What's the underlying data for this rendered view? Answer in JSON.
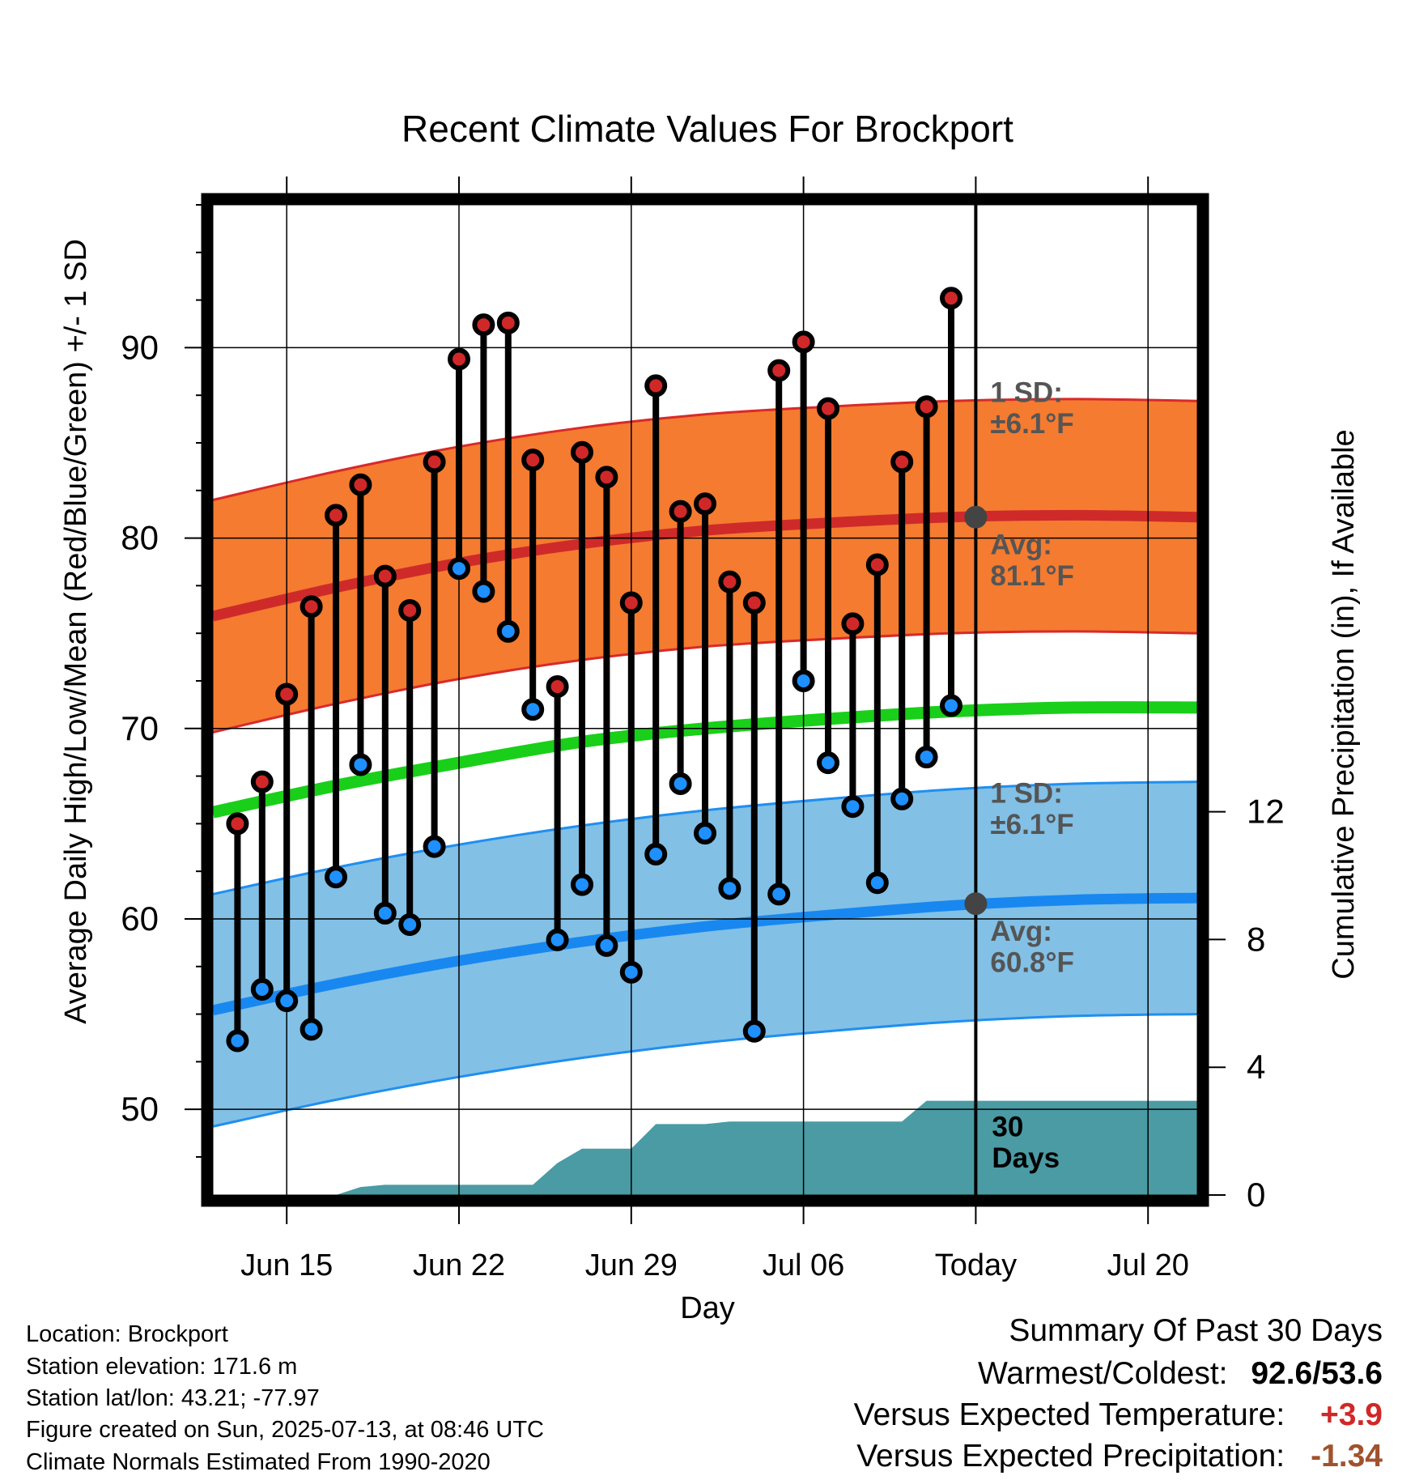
{
  "chart_data": {
    "type": "line",
    "title": "Recent Climate Values For Brockport",
    "xlabel": "Day",
    "ylabel": "Average Daily High/Low/Mean (Red/Blue/Green) +/- 1 SD",
    "y2label": "Cumulative Precipitation (in), If Available",
    "x_ticks": [
      "Jun 15",
      "Jun 22",
      "Jun 29",
      "Jul 06",
      "Today",
      "Jul 20"
    ],
    "x_tick_dates": [
      "2025-06-15",
      "2025-06-22",
      "2025-06-29",
      "2025-07-06",
      "2025-07-13",
      "2025-07-20"
    ],
    "xlim": [
      "2025-06-12",
      "2025-07-22"
    ],
    "ylim": [
      45.5,
      97.5
    ],
    "y_ticks": [
      50,
      60,
      70,
      80,
      90
    ],
    "y2lim": [
      0,
      31
    ],
    "y2_ticks": [
      0,
      4,
      8,
      12
    ],
    "grid": true,
    "today": "2025-07-13",
    "observed": {
      "dates": [
        "2025-06-13",
        "2025-06-14",
        "2025-06-15",
        "2025-06-16",
        "2025-06-17",
        "2025-06-18",
        "2025-06-19",
        "2025-06-20",
        "2025-06-21",
        "2025-06-22",
        "2025-06-23",
        "2025-06-24",
        "2025-06-25",
        "2025-06-26",
        "2025-06-27",
        "2025-06-28",
        "2025-06-29",
        "2025-06-30",
        "2025-07-01",
        "2025-07-02",
        "2025-07-03",
        "2025-07-04",
        "2025-07-05",
        "2025-07-06",
        "2025-07-07",
        "2025-07-08",
        "2025-07-09",
        "2025-07-10",
        "2025-07-11",
        "2025-07-12"
      ],
      "high": [
        65.0,
        67.2,
        71.8,
        76.4,
        81.2,
        82.8,
        78.0,
        76.2,
        84.0,
        89.4,
        91.2,
        91.3,
        84.1,
        72.2,
        84.5,
        83.2,
        76.6,
        88.0,
        81.4,
        81.8,
        77.7,
        76.6,
        88.8,
        90.3,
        86.8,
        75.5,
        78.6,
        84.0,
        86.9,
        92.6
      ],
      "low": [
        53.6,
        56.3,
        55.7,
        54.2,
        62.2,
        68.1,
        60.3,
        59.7,
        63.8,
        78.4,
        77.2,
        75.1,
        71.0,
        58.9,
        61.8,
        58.6,
        57.2,
        63.4,
        67.1,
        64.5,
        61.6,
        54.1,
        61.3,
        72.5,
        68.2,
        65.9,
        61.9,
        66.3,
        68.5,
        71.2
      ]
    },
    "normals": {
      "dates": [
        "2025-06-12",
        "2025-06-17",
        "2025-06-22",
        "2025-06-27",
        "2025-07-02",
        "2025-07-07",
        "2025-07-12",
        "2025-07-17",
        "2025-07-22"
      ],
      "high_avg": [
        75.9,
        77.4,
        78.7,
        79.7,
        80.4,
        80.8,
        81.1,
        81.2,
        81.1
      ],
      "low_avg": [
        55.2,
        56.6,
        57.8,
        58.8,
        59.6,
        60.2,
        60.7,
        61.0,
        61.1
      ],
      "mean_avg": [
        65.6,
        67.0,
        68.2,
        69.3,
        70.0,
        70.5,
        70.9,
        71.1,
        71.1
      ],
      "sd": 6.1
    },
    "precip": {
      "dates": [
        "2025-06-12",
        "2025-06-17",
        "2025-06-18",
        "2025-06-19",
        "2025-06-25",
        "2025-06-26",
        "2025-06-27",
        "2025-06-29",
        "2025-06-30",
        "2025-07-02",
        "2025-07-03",
        "2025-07-10",
        "2025-07-11",
        "2025-07-12",
        "2025-07-22"
      ],
      "values": [
        0.0,
        0.0,
        0.25,
        0.32,
        0.32,
        1.0,
        1.45,
        1.45,
        2.22,
        2.22,
        2.3,
        2.3,
        2.95,
        2.95,
        2.95
      ]
    },
    "annotations": {
      "high_sd": {
        "line1": "1 SD:",
        "line2": "±6.1°F",
        "at_value": 87.4
      },
      "high_avg": {
        "line1": "Avg:",
        "line2": "81.1°F",
        "value": 81.1
      },
      "low_sd": {
        "line1": "1 SD:",
        "line2": "±6.1°F",
        "at_value": 67.2
      },
      "low_avg": {
        "line1": "Avg:",
        "line2": "60.8°F",
        "value": 60.8
      },
      "precip_days": {
        "line1": "30",
        "line2": "Days"
      }
    },
    "colors": {
      "high_band": "#f47b30",
      "high_band_edge": "#d82a2a",
      "high_avg": "#cf2a2a",
      "low_band": "#82c0e6",
      "low_band_edge": "#1f8ff0",
      "low_avg": "#1888f0",
      "mean_avg": "#19cf19",
      "precip": "#4a9ba4",
      "high_dot": "#d02828",
      "low_dot": "#1e90ff",
      "today_dot": "#444444",
      "annotation_text": "#555555"
    }
  },
  "info": {
    "location": "Location: Brockport",
    "elevation": "Station elevation: 171.6 m",
    "latlon": "Station lat/lon: 43.21; -77.97",
    "created": "Figure created on Sun, 2025-07-13, at 08:46 UTC",
    "normals": "Climate Normals Estimated From 1990-2020"
  },
  "summary": {
    "title": "Summary Of Past 30 Days",
    "warm_label": "Warmest/Coldest:",
    "warm_value": "92.6/53.6",
    "temp_label": "Versus Expected Temperature:",
    "temp_value": "+3.9",
    "temp_color": "#d02828",
    "precip_label": "Versus Expected Precipitation:",
    "precip_value": "-1.34",
    "precip_color": "#a0522d"
  }
}
